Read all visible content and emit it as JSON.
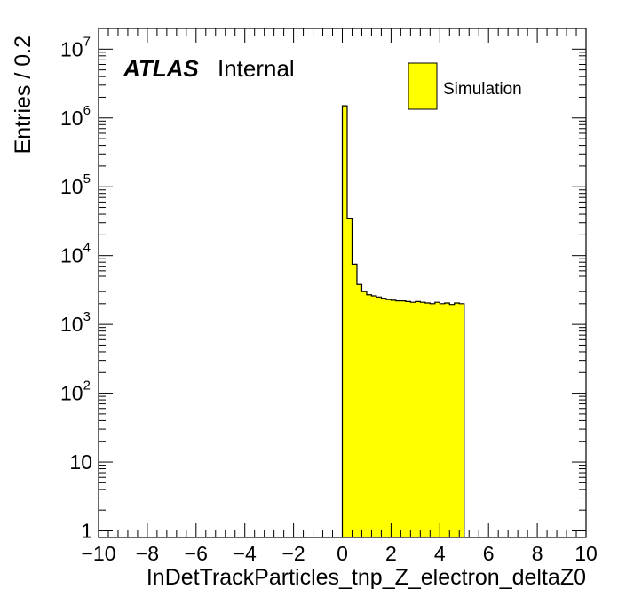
{
  "chart_data": {
    "type": "bar",
    "subtype": "histogram",
    "xlabel": "InDetTrackParticles_tnp_Z_electron_deltaZ0",
    "ylabel": "Entries / 0.2",
    "xlim": [
      -10,
      10
    ],
    "ylim": [
      0.8,
      20000000
    ],
    "yscale": "log",
    "grid": false,
    "x_ticks": [
      {
        "value": -10,
        "label": "−10"
      },
      {
        "value": -8,
        "label": "−8"
      },
      {
        "value": -6,
        "label": "−6"
      },
      {
        "value": -4,
        "label": "−4"
      },
      {
        "value": -2,
        "label": "−2"
      },
      {
        "value": 0,
        "label": "0"
      },
      {
        "value": 2,
        "label": "2"
      },
      {
        "value": 4,
        "label": "4"
      },
      {
        "value": 6,
        "label": "6"
      },
      {
        "value": 8,
        "label": "8"
      },
      {
        "value": 10,
        "label": "10"
      }
    ],
    "y_ticks": [
      {
        "value": 1,
        "base": "1",
        "exp": ""
      },
      {
        "value": 10,
        "base": "10",
        "exp": ""
      },
      {
        "value": 100,
        "base": "10",
        "exp": "2"
      },
      {
        "value": 1000,
        "base": "10",
        "exp": "3"
      },
      {
        "value": 10000,
        "base": "10",
        "exp": "4"
      },
      {
        "value": 100000,
        "base": "10",
        "exp": "5"
      },
      {
        "value": 1000000,
        "base": "10",
        "exp": "6"
      },
      {
        "value": 10000000,
        "base": "10",
        "exp": "7"
      }
    ],
    "bin_width": 0.2,
    "bin_edges_start": 0,
    "values": [
      1500000,
      35000,
      7500,
      3800,
      3000,
      2700,
      2600,
      2500,
      2400,
      2300,
      2250,
      2200,
      2200,
      2150,
      2100,
      2150,
      2100,
      2050,
      2000,
      2100,
      2000,
      2050,
      1950,
      2050,
      2000
    ],
    "series": [
      {
        "name": "Simulation",
        "color": "#ffff00",
        "edge_color": "#000000"
      }
    ],
    "legend_position": "top-right",
    "annotation": {
      "bold": "ATLAS",
      "normal": "Internal"
    }
  }
}
